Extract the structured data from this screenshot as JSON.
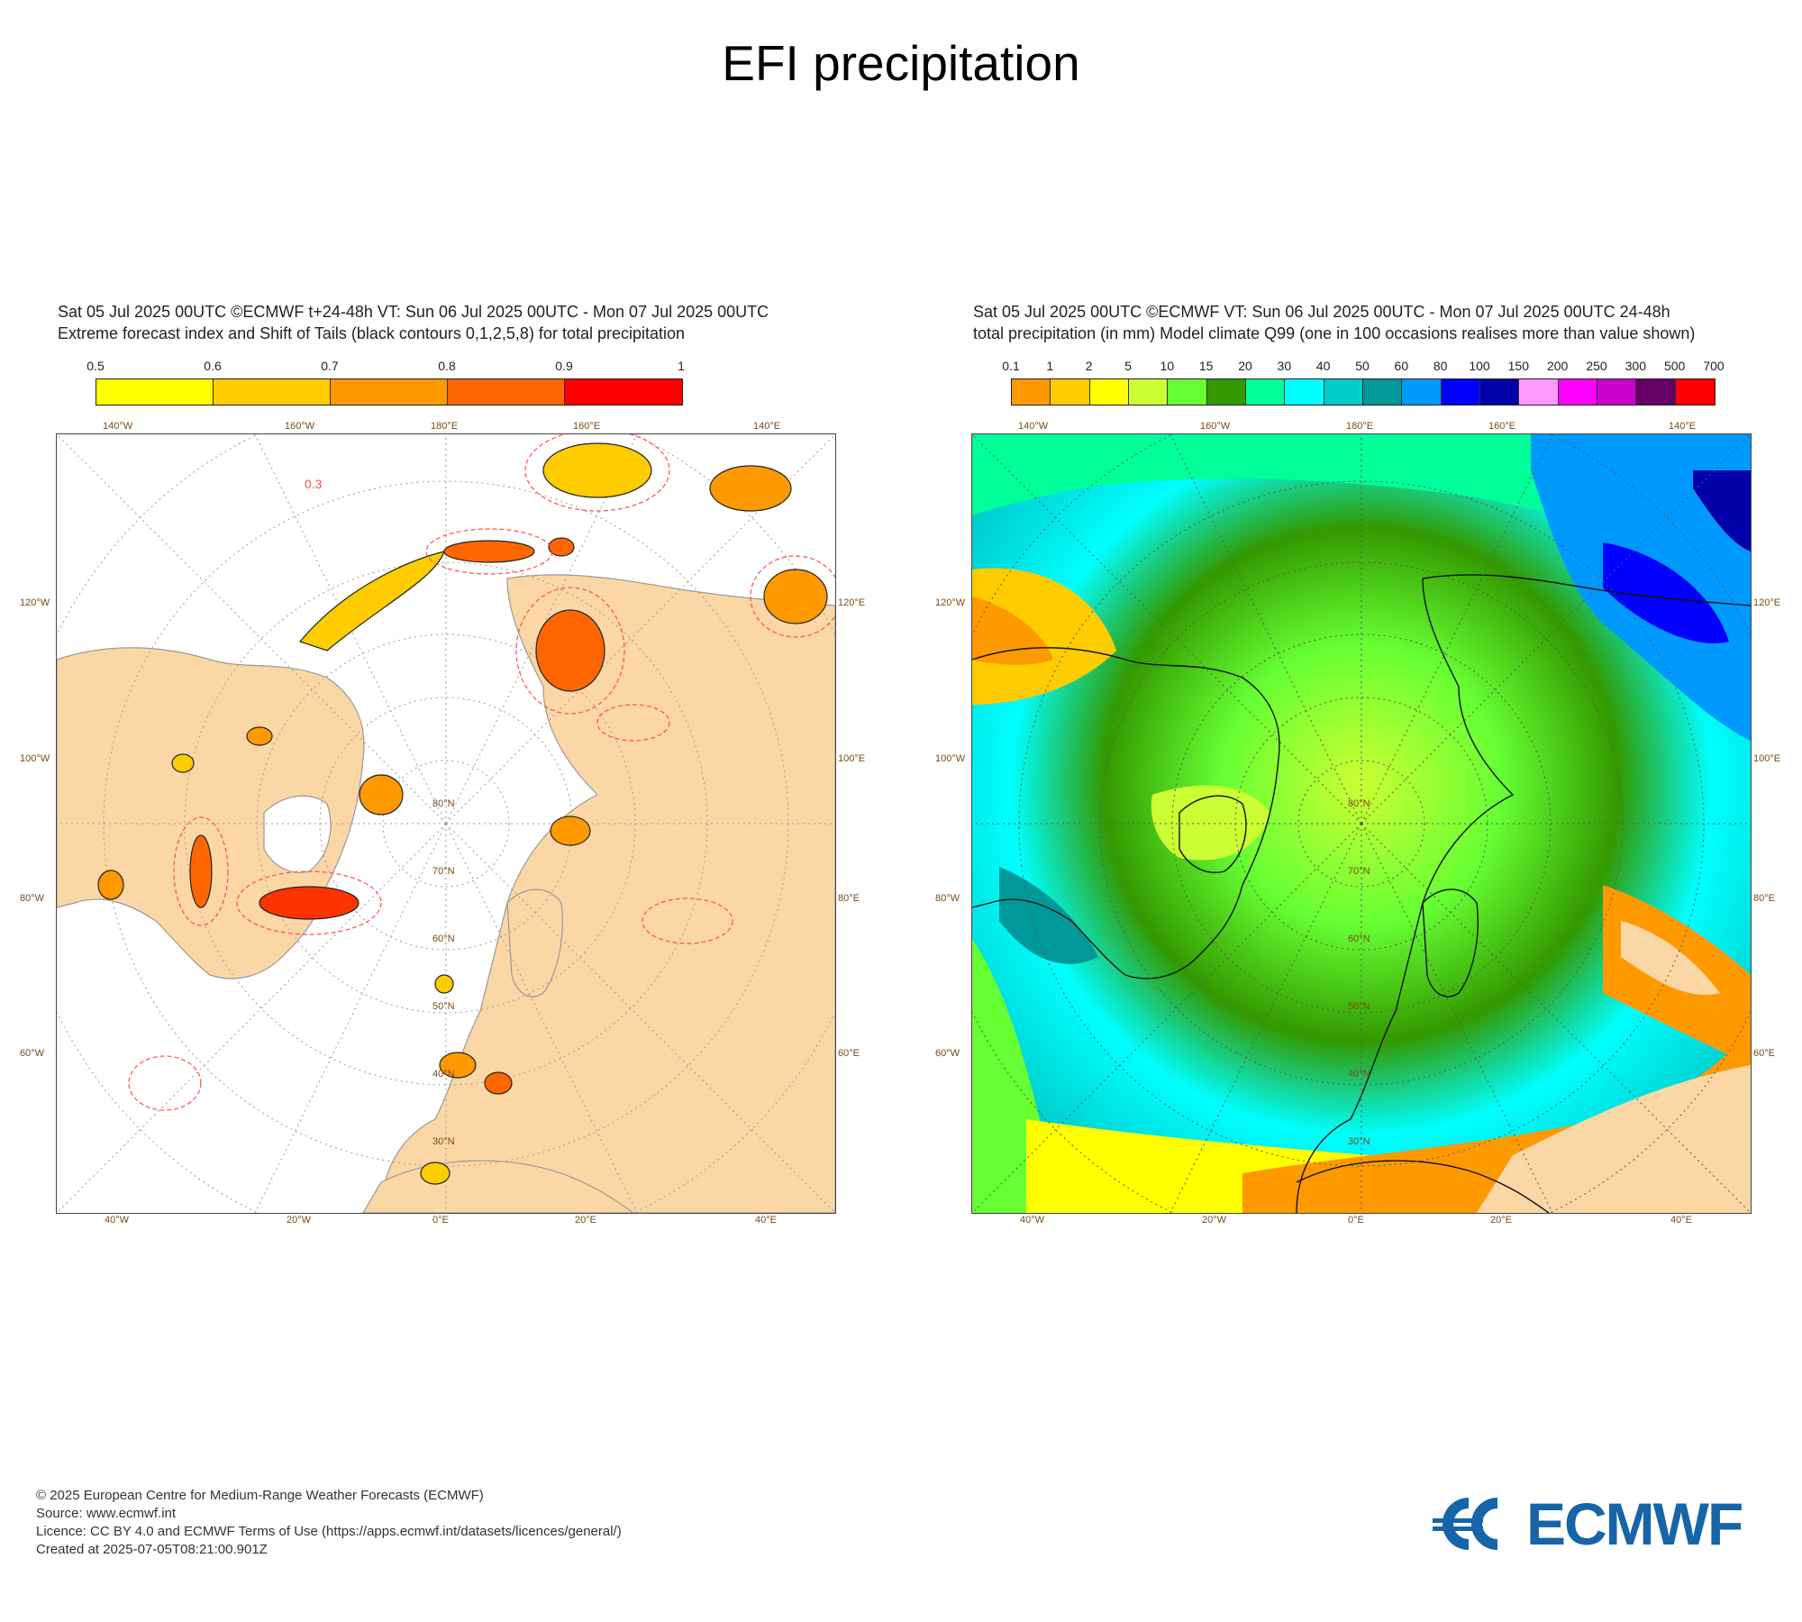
{
  "page": {
    "title": "EFI precipitation"
  },
  "left_panel": {
    "header_line1": "Sat 05 Jul 2025 00UTC ©ECMWF t+24-48h  VT: Sun 06 Jul 2025 00UTC - Mon 07 Jul 2025 00UTC",
    "header_line2": "Extreme forecast index and Shift of Tails (black contours 0,1,2,5,8) for total precipitation",
    "colorbar": {
      "labels": [
        "0.5",
        "0.6",
        "0.7",
        "0.8",
        "0.9",
        "1"
      ],
      "colors": [
        "#ffff00",
        "#ffcc00",
        "#ff9900",
        "#ff6600",
        "#ff0000"
      ]
    },
    "contour_label": "0.3",
    "legend_unit": ""
  },
  "right_panel": {
    "header_line1": "Sat 05 Jul 2025 00UTC ©ECMWF VT: Sun 06 Jul 2025 00UTC - Mon 07 Jul 2025 00UTC   24-48h",
    "header_line2": "total precipitation (in mm)  Model climate Q99 (one in 100 occasions realises more than value shown)",
    "colorbar": {
      "labels": [
        "0.1",
        "1",
        "2",
        "5",
        "10",
        "15",
        "20",
        "30",
        "40",
        "50",
        "60",
        "80",
        "100",
        "150",
        "200",
        "250",
        "300",
        "500",
        "700"
      ],
      "colors": [
        "#ff9900",
        "#ffcc00",
        "#ffff00",
        "#ccff33",
        "#66ff33",
        "#339900",
        "#00ff99",
        "#00ffff",
        "#00cccc",
        "#009999",
        "#0099ff",
        "#0000ff",
        "#0000aa",
        "#ff99ff",
        "#ff00ff",
        "#cc00cc",
        "#660066",
        "#ff0000"
      ]
    }
  },
  "map_axes": {
    "top": [
      "140°W",
      "160°W",
      "180°E",
      "160°E",
      "140°E"
    ],
    "bottom": [
      "40°W",
      "20°W",
      "0°E",
      "20°E",
      "40°E"
    ],
    "left": [
      "120°W",
      "100°W",
      "80°W",
      "60°W"
    ],
    "right": [
      "120°E",
      "100°E",
      "80°E",
      "60°E"
    ],
    "lat_rings": [
      "30°N",
      "40°N",
      "50°N",
      "60°N",
      "70°N",
      "80°N"
    ]
  },
  "footer": {
    "line1": "© 2025 European Centre for Medium-Range Weather Forecasts (ECMWF)",
    "line2": "Source: www.ecmwf.int",
    "line3": "Licence: CC BY 4.0 and ECMWF Terms of Use (https://apps.ecmwf.int/datasets/licences/general/)",
    "line4": "Created at 2025-07-05T08:21:00.901Z"
  },
  "logo": {
    "text": "ECMWF",
    "color": "#1565a8"
  }
}
